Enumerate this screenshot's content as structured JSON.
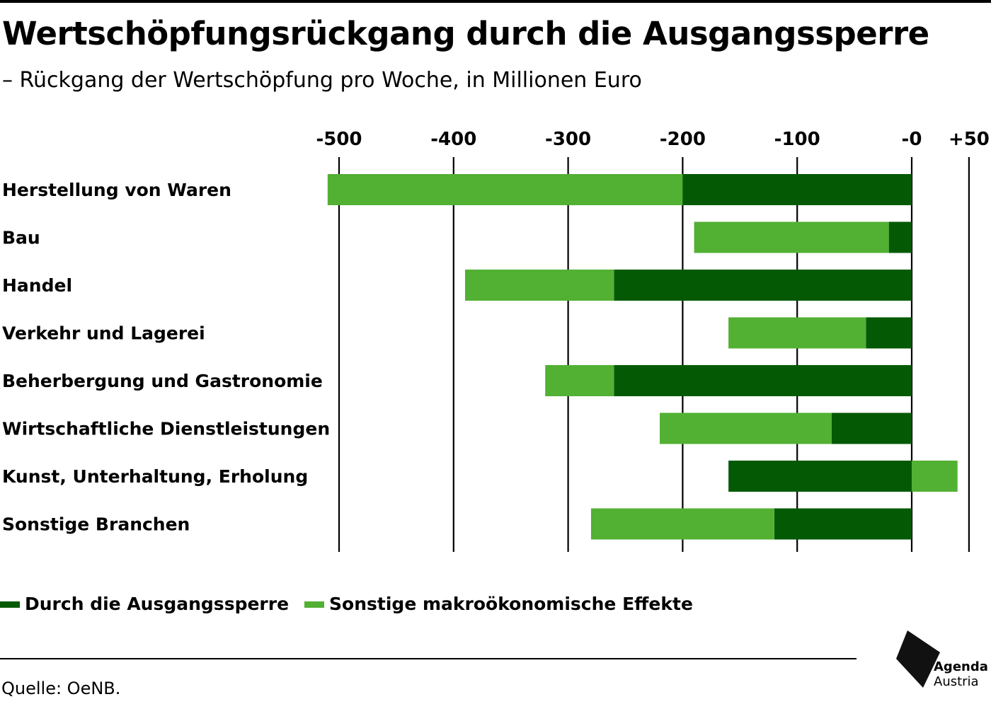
{
  "header": {
    "title": "Wertschöpfungsrückgang durch die Ausgangssperre",
    "subtitle": "– Rückgang der Wertschöpfung pro Woche, in Millionen Euro"
  },
  "legend": {
    "items": [
      {
        "label": "Durch die Ausgangssperre",
        "color": "#045a04"
      },
      {
        "label": "Sonstige makroökonomische Effekte",
        "color": "#52b033"
      }
    ]
  },
  "footer": {
    "source": "Quelle: OeNB."
  },
  "logo": {
    "line1": "Agenda",
    "line2": "Austria"
  },
  "chart_data": {
    "type": "bar",
    "orientation": "horizontal",
    "stacked": true,
    "title": "Wertschöpfungsrückgang durch die Ausgangssperre",
    "subtitle": "– Rückgang der Wertschöpfung pro Woche, in Millionen Euro",
    "xlim": [
      -500,
      50
    ],
    "x_ticks": [
      -500,
      -400,
      -300,
      -200,
      -100,
      0,
      50
    ],
    "x_tick_labels": [
      "-500",
      "-400",
      "-300",
      "-200",
      "-100",
      "-0",
      "+50"
    ],
    "axis_position": "top",
    "grid": true,
    "legend_position": "bottom-left",
    "categories": [
      "Herstellung von Waren",
      "Bau",
      "Handel",
      "Verkehr und Lagerei",
      "Beherbergung und Gastronomie",
      "Wirtschaftliche Dienstleistungen",
      "Kunst, Unterhaltung, Erholung",
      "Sonstige Branchen"
    ],
    "series": [
      {
        "name": "Durch die Ausgangssperre",
        "color": "#045a04",
        "values": [
          -200,
          -20,
          -260,
          -40,
          -260,
          -70,
          -160,
          -120
        ]
      },
      {
        "name": "Sonstige makroökonomische Effekte",
        "color": "#52b033",
        "values": [
          -310,
          -170,
          -130,
          -120,
          -60,
          -150,
          40,
          -160
        ]
      }
    ]
  }
}
